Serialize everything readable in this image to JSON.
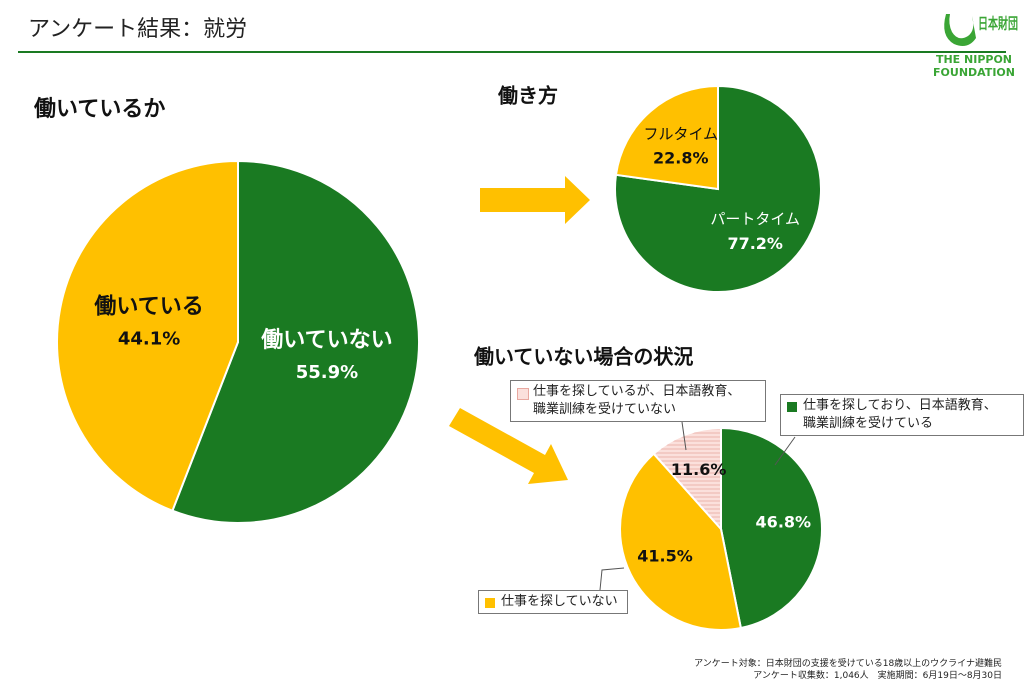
{
  "header": {
    "title": "アンケート結果：就労"
  },
  "logo": {
    "name": "日本財団",
    "line1": "THE NIPPON",
    "line2": "FOUNDATION"
  },
  "footnote": [
    "アンケート対象：日本財団の支援を受けている18歳以上のウクライナ避難民",
    "アンケート収集数：1,046人　実施期間：6月19日～8月30日"
  ],
  "chart_data": [
    {
      "type": "pie",
      "title": "働いているか",
      "categories": [
        "働いていない",
        "働いている"
      ],
      "values": [
        55.9,
        44.1
      ],
      "value_labels": [
        "55.9%",
        "44.1%"
      ],
      "colors": [
        "#1a7a22",
        "#ffc000"
      ]
    },
    {
      "type": "pie",
      "title": "働き方",
      "categories": [
        "パートタイム",
        "フルタイム"
      ],
      "values": [
        77.2,
        22.8
      ],
      "value_labels": [
        "77.2%",
        "22.8%"
      ],
      "colors": [
        "#1a7a22",
        "#ffc000"
      ]
    },
    {
      "type": "pie",
      "title": "働いていない場合の状況",
      "categories": [
        "仕事を探しており、日本語教育、\n職業訓練を受けている",
        "仕事を探していない",
        "仕事を探しているが、日本語教育、\n職業訓練を受けていない"
      ],
      "values": [
        46.8,
        41.5,
        11.6
      ],
      "value_labels": [
        "46.8%",
        "41.5%",
        "11.6%"
      ],
      "colors": [
        "#1a7a22",
        "#ffc000",
        "#fbe0dc"
      ]
    }
  ]
}
